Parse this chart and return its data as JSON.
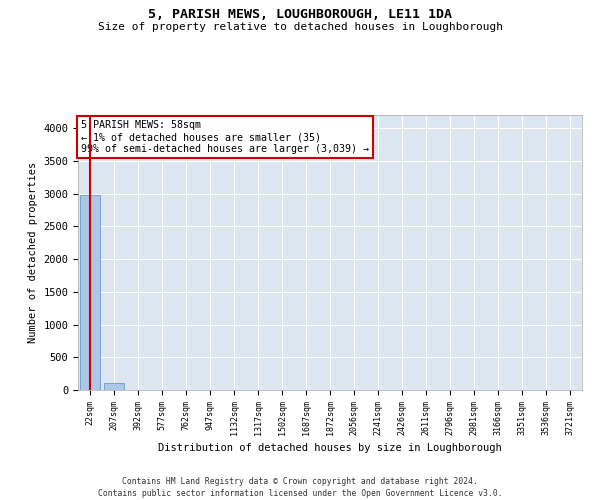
{
  "title": "5, PARISH MEWS, LOUGHBOROUGH, LE11 1DA",
  "subtitle": "Size of property relative to detached houses in Loughborough",
  "xlabel": "Distribution of detached houses by size in Loughborough",
  "ylabel": "Number of detached properties",
  "categories": [
    "22sqm",
    "207sqm",
    "392sqm",
    "577sqm",
    "762sqm",
    "947sqm",
    "1132sqm",
    "1317sqm",
    "1502sqm",
    "1687sqm",
    "1872sqm",
    "2056sqm",
    "2241sqm",
    "2426sqm",
    "2611sqm",
    "2796sqm",
    "2981sqm",
    "3166sqm",
    "3351sqm",
    "3536sqm",
    "3721sqm"
  ],
  "values": [
    2980,
    100,
    0,
    0,
    0,
    0,
    0,
    0,
    0,
    0,
    0,
    0,
    0,
    0,
    0,
    0,
    0,
    0,
    0,
    0,
    0
  ],
  "bar_color": "#aec6e8",
  "bar_edge_color": "#5b8ec4",
  "highlight_line_color": "#cc0000",
  "annotation_text": "5 PARISH MEWS: 58sqm\n← 1% of detached houses are smaller (35)\n99% of semi-detached houses are larger (3,039) →",
  "annotation_box_color": "#ffffff",
  "annotation_box_edge_color": "#cc0000",
  "ylim": [
    0,
    4200
  ],
  "yticks": [
    0,
    500,
    1000,
    1500,
    2000,
    2500,
    3000,
    3500,
    4000
  ],
  "background_color": "#dce6f1",
  "grid_color": "#ffffff",
  "footer_line1": "Contains HM Land Registry data © Crown copyright and database right 2024.",
  "footer_line2": "Contains public sector information licensed under the Open Government Licence v3.0."
}
